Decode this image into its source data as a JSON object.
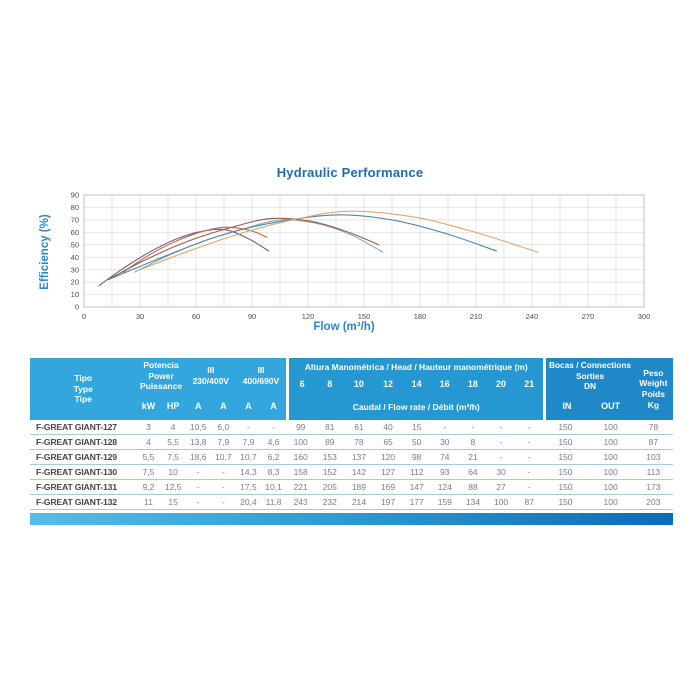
{
  "chart": {
    "title": "Hydraulic Performance",
    "xlabel": "Flow (m³/h)",
    "ylabel": "Efficiency (%)"
  },
  "chart_data": {
    "type": "line",
    "title": "Hydraulic Performance",
    "xlabel": "Flow (m³/h)",
    "ylabel": "Efficiency (%)",
    "xlim": [
      0,
      300
    ],
    "ylim": [
      0,
      90
    ],
    "xticks": [
      0,
      30,
      60,
      90,
      120,
      150,
      180,
      210,
      240,
      270,
      300
    ],
    "yticks": [
      0,
      10,
      20,
      30,
      40,
      50,
      60,
      70,
      80,
      90
    ],
    "x_minor_grid_step": 15,
    "grid": true,
    "legend_position": "none",
    "series": [
      {
        "name": "F-GREAT GIANT-127",
        "color": "#6d6579",
        "points": [
          [
            8,
            17
          ],
          [
            20,
            30
          ],
          [
            35,
            44
          ],
          [
            50,
            55
          ],
          [
            64,
            61
          ],
          [
            76,
            62
          ],
          [
            88,
            55
          ],
          [
            99,
            45
          ]
        ]
      },
      {
        "name": "F-GREAT GIANT-128",
        "color": "#c2655e",
        "points": [
          [
            21,
            28
          ],
          [
            34,
            41
          ],
          [
            48,
            52
          ],
          [
            62,
            60
          ],
          [
            74,
            64
          ],
          [
            84,
            63
          ],
          [
            92,
            60
          ],
          [
            98,
            56
          ]
        ]
      },
      {
        "name": "F-GREAT GIANT-129",
        "color": "#7dafbd",
        "points": [
          [
            27,
            28
          ],
          [
            46,
            42
          ],
          [
            66,
            54
          ],
          [
            86,
            63
          ],
          [
            105,
            70
          ],
          [
            125,
            67
          ],
          [
            143,
            58
          ],
          [
            160,
            44
          ]
        ]
      },
      {
        "name": "F-GREAT GIANT-130",
        "color": "#9e5a41",
        "points": [
          [
            13,
            22
          ],
          [
            33,
            38
          ],
          [
            56,
            53
          ],
          [
            79,
            64
          ],
          [
            100,
            71
          ],
          [
            121,
            69
          ],
          [
            140,
            61
          ],
          [
            158,
            50
          ]
        ]
      },
      {
        "name": "F-GREAT GIANT-131",
        "color": "#4f87a5",
        "points": [
          [
            13,
            22
          ],
          [
            42,
            40
          ],
          [
            72,
            57
          ],
          [
            102,
            68
          ],
          [
            135,
            74
          ],
          [
            165,
            70
          ],
          [
            194,
            59
          ],
          [
            221,
            45
          ]
        ]
      },
      {
        "name": "F-GREAT GIANT-132",
        "color": "#e3a569",
        "points": [
          [
            30,
            30
          ],
          [
            58,
            46
          ],
          [
            88,
            61
          ],
          [
            115,
            71
          ],
          [
            142,
            77
          ],
          [
            178,
            72
          ],
          [
            212,
            59
          ],
          [
            243,
            44
          ]
        ]
      }
    ]
  },
  "table": {
    "header": {
      "tipo": "Tipo\nType\nTipe",
      "potencia": "Potencia\nPower\nPuissance",
      "kw": "kW",
      "hp": "HP",
      "iii_230": "III\n230/400V",
      "iii_400": "III\n400/690V",
      "amp": "A",
      "altura": "Altura Manométrica / Head / Hauteur manométrique (m)",
      "head_values": [
        "6",
        "8",
        "10",
        "12",
        "14",
        "16",
        "18",
        "20",
        "21"
      ],
      "caudal": "Caudal / Flow rate / Débit (m³/h)",
      "bocas": "Bocas / Connections\nSorties\nDN",
      "in": "IN",
      "out": "OUT",
      "peso": "Peso\nWeight\nPoids\nKg"
    },
    "rows": [
      {
        "model": "F-GREAT GIANT-127",
        "kw": "3",
        "hp": "4",
        "amp_230": [
          "10,5",
          "6,0"
        ],
        "amp_400": [
          "-",
          "-"
        ],
        "flows": [
          "99",
          "81",
          "61",
          "40",
          "15",
          "-",
          "-",
          "-",
          "-"
        ],
        "dn_in": "150",
        "dn_out": "100",
        "weight_kg": "78"
      },
      {
        "model": "F-GREAT GIANT-128",
        "kw": "4",
        "hp": "5,5",
        "amp_230": [
          "13,8",
          "7,9"
        ],
        "amp_400": [
          "7,9",
          "4,6"
        ],
        "flows": [
          "100",
          "89",
          "78",
          "65",
          "50",
          "30",
          "8",
          "-",
          "-"
        ],
        "dn_in": "150",
        "dn_out": "100",
        "weight_kg": "87"
      },
      {
        "model": "F-GREAT GIANT-129",
        "kw": "5,5",
        "hp": "7,5",
        "amp_230": [
          "18,6",
          "10,7"
        ],
        "amp_400": [
          "10,7",
          "6,2"
        ],
        "flows": [
          "160",
          "153",
          "137",
          "120",
          "98",
          "74",
          "21",
          "-",
          "-"
        ],
        "dn_in": "150",
        "dn_out": "100",
        "weight_kg": "103"
      },
      {
        "model": "F-GREAT GIANT-130",
        "kw": "7,5",
        "hp": "10",
        "amp_230": [
          "-",
          "-"
        ],
        "amp_400": [
          "14,3",
          "8,3"
        ],
        "flows": [
          "158",
          "152",
          "142",
          "127",
          "112",
          "93",
          "64",
          "30",
          "-"
        ],
        "dn_in": "150",
        "dn_out": "100",
        "weight_kg": "113"
      },
      {
        "model": "F-GREAT GIANT-131",
        "kw": "9,2",
        "hp": "12,5",
        "amp_230": [
          "-",
          "-"
        ],
        "amp_400": [
          "17,5",
          "10,1"
        ],
        "flows": [
          "221",
          "205",
          "189",
          "169",
          "147",
          "124",
          "88",
          "27",
          "-"
        ],
        "dn_in": "150",
        "dn_out": "100",
        "weight_kg": "173"
      },
      {
        "model": "F-GREAT GIANT-132",
        "kw": "11",
        "hp": "15",
        "amp_230": [
          "-",
          "-"
        ],
        "amp_400": [
          "20,4",
          "11,8"
        ],
        "flows": [
          "243",
          "232",
          "214",
          "197",
          "177",
          "159",
          "134",
          "100",
          "87"
        ],
        "dn_in": "150",
        "dn_out": "100",
        "weight_kg": "203"
      }
    ]
  },
  "colors": {
    "chart_title": "#1d6cb0",
    "axis_label": "#2e86c8",
    "tick_label": "#4a4a4a",
    "gridline": "#dcdcdc",
    "plot_border": "#bdbdbd",
    "header_block_left": "#33a7dd",
    "header_block_mid": "#2598d2",
    "header_block_right": "#1f88c6",
    "header_text": "#ffffff",
    "row_separator": "#a9cbd9",
    "model_text": "#474747",
    "value_text": "#75808a",
    "bar_gradient_left": "#55bce8",
    "bar_gradient_right": "#0c6cb4"
  }
}
